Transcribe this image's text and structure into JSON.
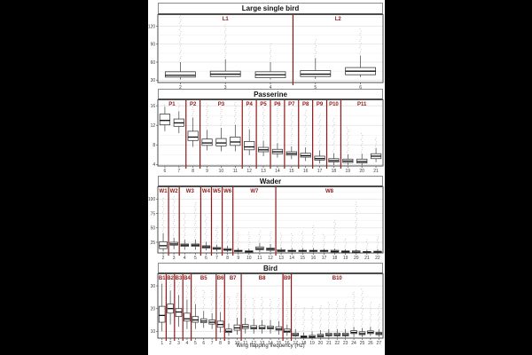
{
  "page": {
    "background": "#000000",
    "figure_background": "#ffffff"
  },
  "colors": {
    "group_label": "#921616",
    "divider_line": "#921616",
    "box_border": "#3f3f3f",
    "median": "#101010",
    "outlier_dot": "#adadad",
    "grid_major": "#e2e2e2",
    "grid_minor": "#f0f0f0",
    "panel_border": "#4d4d4d",
    "tick_text": "#3a3a3a"
  },
  "xlabel": "Wing flapping frequency (Hz)",
  "box_format": [
    "x",
    "whisker_low",
    "q1",
    "median",
    "q3",
    "whisker_high",
    "outlier_max"
  ],
  "chart_data": [
    {
      "type": "box",
      "title": "Large single bird",
      "ylim": [
        26,
        140
      ],
      "yticks": [
        30,
        60,
        90,
        120
      ],
      "yminor": [
        45,
        75,
        105,
        135
      ],
      "categories": [
        2,
        3,
        4,
        5,
        6
      ],
      "groups": [
        {
          "label": "L1",
          "from": 2,
          "to": 4
        },
        {
          "label": "L2",
          "from": 5,
          "to": 6
        }
      ],
      "dividers": [
        4.5
      ],
      "boxes": [
        [
          2,
          31,
          35,
          38,
          44,
          60,
          142
        ],
        [
          3,
          32,
          36,
          40,
          45,
          65,
          125
        ],
        [
          4,
          31,
          34,
          39,
          44,
          60,
          92
        ],
        [
          5,
          32,
          36,
          40,
          46,
          67,
          98
        ],
        [
          6,
          35,
          39,
          45,
          51,
          71,
          117
        ]
      ]
    },
    {
      "type": "box",
      "title": "Passerine",
      "ylim": [
        3.7,
        17.3
      ],
      "yticks": [
        4,
        8,
        12,
        16
      ],
      "yminor": [
        6,
        10,
        14
      ],
      "categories": [
        6,
        7,
        8,
        9,
        10,
        11,
        12,
        13,
        14,
        15,
        16,
        17,
        18,
        19,
        20,
        21
      ],
      "groups": [
        {
          "label": "P1",
          "from": 6,
          "to": 7
        },
        {
          "label": "P2",
          "from": 8,
          "to": 8
        },
        {
          "label": "P3",
          "from": 9,
          "to": 11
        },
        {
          "label": "P4",
          "from": 12,
          "to": 12
        },
        {
          "label": "P5",
          "from": 13,
          "to": 13
        },
        {
          "label": "P6",
          "from": 14,
          "to": 14
        },
        {
          "label": "P7",
          "from": 15,
          "to": 15
        },
        {
          "label": "P8",
          "from": 16,
          "to": 16
        },
        {
          "label": "P9",
          "from": 17,
          "to": 17
        },
        {
          "label": "P10",
          "from": 18,
          "to": 18
        },
        {
          "label": "P11",
          "from": 19,
          "to": 21
        }
      ],
      "dividers": [
        7.5,
        8.5,
        11.5,
        12.5,
        13.5,
        14.5,
        15.5,
        16.5,
        17.5,
        18.5
      ],
      "boxes": [
        [
          6,
          10.8,
          12.1,
          13.0,
          14.3,
          15.8,
          16.6
        ],
        [
          7,
          10.4,
          11.8,
          12.5,
          13.3,
          14.9,
          16.8
        ],
        [
          8,
          7.6,
          8.9,
          9.6,
          10.8,
          13.6,
          16.8
        ],
        [
          9,
          6.9,
          7.9,
          8.4,
          9.2,
          11.1,
          16.8
        ],
        [
          10,
          6.7,
          7.8,
          8.4,
          9.3,
          11.5,
          16.9
        ],
        [
          11,
          6.7,
          7.9,
          8.6,
          9.6,
          12.1,
          16.9
        ],
        [
          12,
          5.9,
          7.0,
          7.6,
          8.7,
          11.2,
          16.7
        ],
        [
          13,
          5.7,
          6.6,
          7.0,
          7.5,
          8.9,
          15.9
        ],
        [
          14,
          5.4,
          6.2,
          6.6,
          7.1,
          8.4,
          15.9
        ],
        [
          15,
          5.1,
          5.9,
          6.2,
          6.6,
          7.7,
          15.5
        ],
        [
          16,
          4.7,
          5.5,
          5.8,
          6.3,
          7.5,
          15.3
        ],
        [
          17,
          4.2,
          4.9,
          5.2,
          5.7,
          6.9,
          14.6
        ],
        [
          18,
          3.9,
          4.5,
          4.8,
          5.2,
          6.3,
          13.6
        ],
        [
          19,
          3.9,
          4.4,
          4.7,
          5.1,
          6.1,
          11.6
        ],
        [
          20,
          3.8,
          4.3,
          4.6,
          5.1,
          6.2,
          10.6
        ],
        [
          21,
          4.5,
          5.2,
          5.7,
          6.2,
          7.4,
          9.6
        ]
      ]
    },
    {
      "type": "box",
      "title": "Wader",
      "ylim": [
        6.5,
        122
      ],
      "yticks": [
        25,
        50,
        75,
        100
      ],
      "yminor": [
        12.5,
        37.5,
        62.5,
        87.5,
        112.5
      ],
      "categories": [
        2,
        3,
        4,
        5,
        6,
        7,
        8,
        9,
        10,
        11,
        12,
        13,
        14,
        15,
        16,
        17,
        18,
        19,
        20,
        21,
        22
      ],
      "groups": [
        {
          "label": "W1",
          "from": 2,
          "to": 2
        },
        {
          "label": "W2",
          "from": 3,
          "to": 3
        },
        {
          "label": "W3",
          "from": 4,
          "to": 5
        },
        {
          "label": "W4",
          "from": 6,
          "to": 6
        },
        {
          "label": "W5",
          "from": 7,
          "to": 7
        },
        {
          "label": "W6",
          "from": 8,
          "to": 8
        },
        {
          "label": "W7",
          "from": 9,
          "to": 12
        },
        {
          "label": "W8",
          "from": 13,
          "to": 22
        }
      ],
      "dividers": [
        2.5,
        3.5,
        5.5,
        6.5,
        7.5,
        8.5,
        12.5
      ],
      "boxes": [
        [
          2,
          9,
          14,
          19,
          26,
          41,
          103
        ],
        [
          3,
          13,
          20,
          22,
          25,
          33,
          104
        ],
        [
          4,
          12,
          18,
          20,
          22,
          30,
          76
        ],
        [
          5,
          12,
          18,
          20,
          22,
          30,
          96
        ],
        [
          6,
          11,
          15,
          17,
          19,
          26,
          72
        ],
        [
          7,
          9,
          13,
          14,
          16,
          21,
          56
        ],
        [
          8,
          8,
          11,
          12,
          14,
          19,
          56
        ],
        [
          9,
          7,
          9,
          10,
          11,
          15,
          46
        ],
        [
          10,
          7,
          8,
          9,
          10,
          14,
          43
        ],
        [
          11,
          8,
          12,
          14,
          17,
          24,
          46
        ],
        [
          12,
          8,
          11,
          13,
          15,
          22,
          46
        ],
        [
          13,
          7,
          9,
          10,
          12,
          16,
          41
        ],
        [
          14,
          7,
          9,
          10,
          11,
          15,
          43
        ],
        [
          15,
          7,
          9,
          10,
          11,
          15,
          46
        ],
        [
          16,
          7,
          9,
          10,
          11,
          15,
          56
        ],
        [
          17,
          7,
          9,
          10,
          11,
          14,
          41
        ],
        [
          18,
          7,
          8,
          9,
          11,
          14,
          66
        ],
        [
          19,
          6.8,
          7.5,
          8.5,
          10,
          13,
          31
        ],
        [
          20,
          6.8,
          7,
          8,
          10,
          13,
          96
        ],
        [
          21,
          6.8,
          7,
          7.5,
          9,
          12,
          31
        ],
        [
          22,
          6.8,
          7,
          8,
          9.5,
          13,
          36
        ]
      ]
    },
    {
      "type": "box",
      "title": "Bird",
      "ylim": [
        7,
        35.5
      ],
      "yticks": [
        10,
        20,
        30
      ],
      "yminor": [
        15,
        25,
        35
      ],
      "categories": [
        1,
        2,
        3,
        4,
        5,
        6,
        7,
        8,
        9,
        10,
        11,
        12,
        13,
        14,
        15,
        16,
        17,
        18,
        19,
        20,
        21,
        22,
        23,
        24,
        25,
        26,
        27
      ],
      "groups": [
        {
          "label": "B1",
          "from": 1,
          "to": 1
        },
        {
          "label": "B2",
          "from": 2,
          "to": 2
        },
        {
          "label": "B3",
          "from": 3,
          "to": 3
        },
        {
          "label": "B4",
          "from": 4,
          "to": 4
        },
        {
          "label": "B5",
          "from": 5,
          "to": 7
        },
        {
          "label": "B6",
          "from": 8,
          "to": 8
        },
        {
          "label": "B7",
          "from": 9,
          "to": 10
        },
        {
          "label": "B8",
          "from": 11,
          "to": 15
        },
        {
          "label": "B9",
          "from": 16,
          "to": 16
        },
        {
          "label": "B10",
          "from": 17,
          "to": 27
        }
      ],
      "dividers": [
        1.5,
        2.5,
        3.5,
        4.5,
        7.5,
        8.5,
        10.5,
        15.5,
        16.5
      ],
      "boxes": [
        [
          1,
          10,
          14,
          17,
          21,
          31,
          34
        ],
        [
          2,
          13,
          18,
          20,
          22,
          28,
          35
        ],
        [
          3,
          12,
          16.5,
          18.5,
          20,
          26,
          33
        ],
        [
          4,
          11,
          14.5,
          15.5,
          18,
          24,
          31
        ],
        [
          5,
          11,
          14,
          15,
          16.5,
          22,
          30
        ],
        [
          6,
          11.5,
          13.8,
          14.5,
          15.5,
          19,
          28
        ],
        [
          7,
          11,
          13.2,
          14,
          15,
          18,
          28
        ],
        [
          8,
          9.5,
          11.8,
          13,
          14.5,
          18.5,
          27
        ],
        [
          9,
          8,
          9.5,
          10,
          11,
          13.5,
          26
        ],
        [
          10,
          8.5,
          10.5,
          11.5,
          12.8,
          16,
          27
        ],
        [
          11,
          9,
          11.2,
          12,
          13,
          16,
          26
        ],
        [
          12,
          9,
          11,
          11.5,
          12.5,
          15.5,
          25
        ],
        [
          13,
          9,
          11,
          11.5,
          12.5,
          15,
          25
        ],
        [
          14,
          9,
          11,
          11.5,
          12.3,
          15,
          24
        ],
        [
          15,
          8.5,
          10.5,
          11,
          12,
          14.5,
          25
        ],
        [
          16,
          8,
          9.5,
          10,
          11,
          13,
          23
        ],
        [
          17,
          7.5,
          8,
          8.5,
          9.2,
          11,
          22
        ],
        [
          18,
          7.2,
          7.3,
          7.6,
          8,
          9.5,
          21
        ],
        [
          19,
          7.2,
          7.3,
          7.6,
          8.2,
          10,
          21
        ],
        [
          20,
          7.2,
          7.5,
          8,
          8.7,
          10.5,
          22
        ],
        [
          21,
          7.3,
          8,
          8.5,
          9.2,
          11,
          23
        ],
        [
          22,
          7.3,
          8,
          8.5,
          9.2,
          11,
          24
        ],
        [
          23,
          7.3,
          8,
          8.5,
          9.2,
          11,
          22
        ],
        [
          24,
          7.5,
          9,
          9.5,
          10.3,
          12,
          28
        ],
        [
          25,
          7.5,
          8.5,
          9,
          9.8,
          11.5,
          29
        ],
        [
          26,
          8,
          9,
          9.5,
          10.2,
          12,
          23
        ],
        [
          27,
          7.5,
          8.5,
          9,
          9.5,
          11,
          22
        ]
      ]
    }
  ]
}
